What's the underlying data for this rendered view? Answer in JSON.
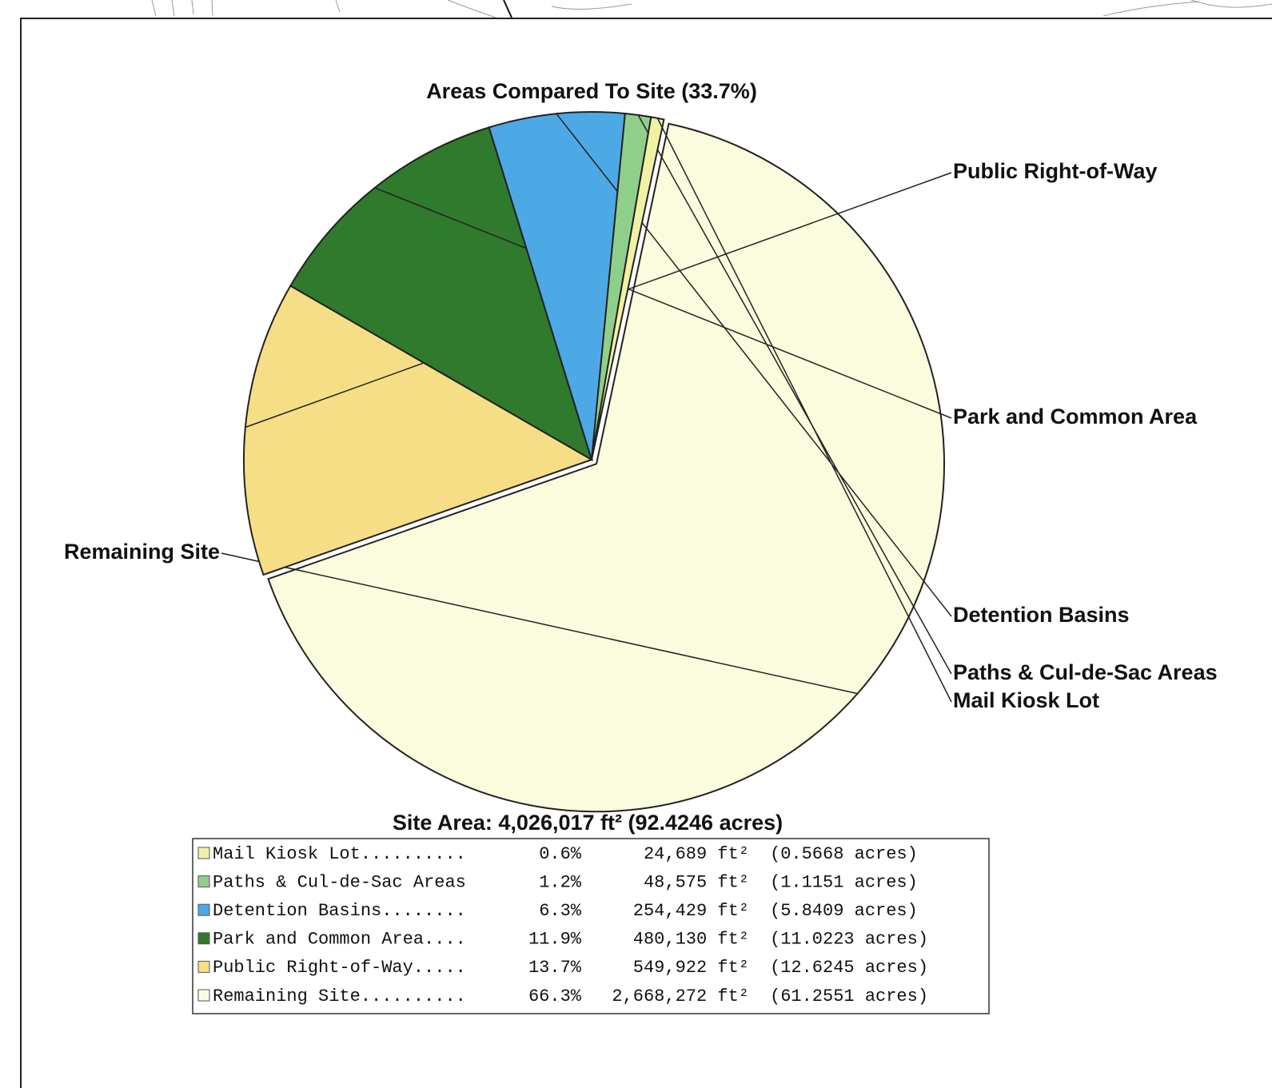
{
  "chart_data": {
    "type": "pie",
    "title": "Areas Compared To Site (33.7%)",
    "subtitle": "Site Area: 4,026,017 ft² (92.4246 acres)",
    "categories": [
      "Mail Kiosk Lot",
      "Paths & Cul-de-Sac Areas",
      "Detention Basins",
      "Park and Common Area",
      "Public Right-of-Way",
      "Remaining Site"
    ],
    "values": [
      0.6,
      1.2,
      6.3,
      11.9,
      13.7,
      66.3
    ],
    "value_labels": [
      "0.6%",
      "1.2%",
      "6.3%",
      "11.9%",
      "13.7%",
      "66.3%"
    ],
    "colors": [
      "#f1f1a6",
      "#8fcf8a",
      "#4da9e6",
      "#2f7a2c",
      "#f6de86",
      "#fbfbdd"
    ],
    "legend": {
      "names": [
        "Mail Kiosk Lot..........",
        "Paths & Cul-de-Sac Areas",
        "Detention Basins........",
        "Park and Common Area....",
        "Public Right-of-Way.....",
        "Remaining Site.........."
      ],
      "areas": [
        "24,689 ft²",
        "48,575 ft²",
        "254,429 ft²",
        "480,130 ft²",
        "549,922 ft²",
        "2,668,272 ft²"
      ],
      "acres": [
        "(0.5668 acres)",
        "(1.1151 acres)",
        "(5.8409 acres)",
        "(11.0223 acres)",
        "(12.6245 acres)",
        "(61.2551 acres)"
      ]
    }
  }
}
